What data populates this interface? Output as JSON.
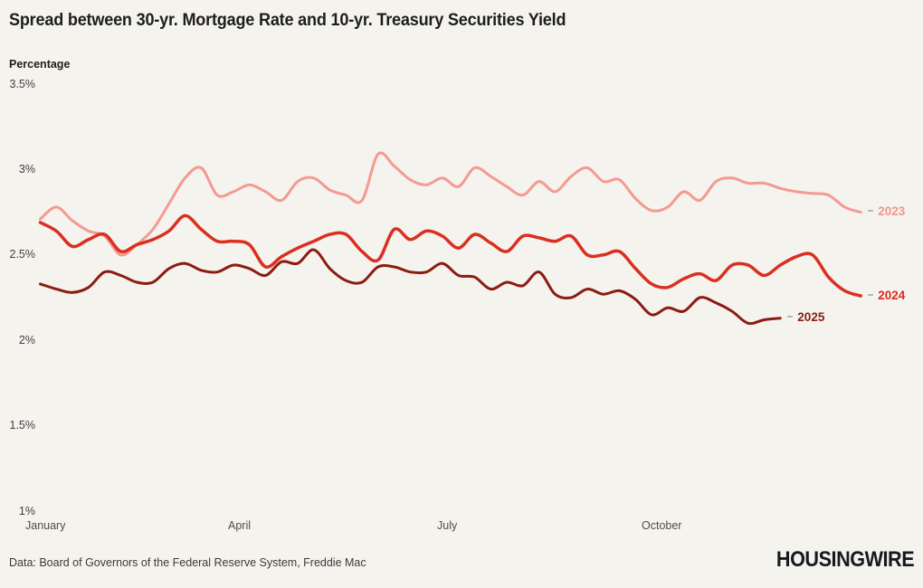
{
  "header": {
    "title": "Spread between 30-yr. Mortgage Rate and 10-yr. Treasury Securities Yield",
    "axis_title": "Percentage"
  },
  "footer": {
    "source": "Data: Board of Governors of the Federal Reserve System, Freddie Mac",
    "logo": "HOUSINGWIRE"
  },
  "chart_data": {
    "type": "line",
    "title": "Spread between 30-yr. Mortgage Rate and 10-yr. Treasury Securities Yield",
    "xlabel": "",
    "ylabel": "Percentage",
    "ylim": [
      1,
      3.5
    ],
    "grid": false,
    "legend_position": "line-end-labels",
    "x_unit": "weekly observations, January through December",
    "y_ticks": [
      {
        "label": "3.5%",
        "value": 3.5
      },
      {
        "label": "3%",
        "value": 3.0
      },
      {
        "label": "2.5%",
        "value": 2.5
      },
      {
        "label": "2%",
        "value": 2.0
      },
      {
        "label": "1.5%",
        "value": 1.5
      },
      {
        "label": "1%",
        "value": 1.0
      }
    ],
    "x_ticks": [
      "January",
      "April",
      "July",
      "October"
    ],
    "series": [
      {
        "name": "2023",
        "color": "#F49A92",
        "label_color": "#F4958C",
        "stroke_width": 3,
        "values": [
          2.71,
          2.78,
          2.7,
          2.64,
          2.61,
          2.5,
          2.56,
          2.65,
          2.8,
          2.95,
          3.01,
          2.85,
          2.87,
          2.91,
          2.87,
          2.82,
          2.93,
          2.95,
          2.88,
          2.85,
          2.82,
          3.09,
          3.02,
          2.94,
          2.91,
          2.95,
          2.9,
          3.01,
          2.96,
          2.9,
          2.85,
          2.93,
          2.87,
          2.96,
          3.01,
          2.93,
          2.94,
          2.83,
          2.76,
          2.78,
          2.87,
          2.82,
          2.93,
          2.95,
          2.92,
          2.92,
          2.89,
          2.87,
          2.86,
          2.85,
          2.78,
          2.75
        ]
      },
      {
        "name": "2024",
        "color": "#DA2F21",
        "label_color": "#E02A1D",
        "stroke_width": 3.5,
        "values": [
          2.69,
          2.64,
          2.55,
          2.59,
          2.62,
          2.52,
          2.56,
          2.59,
          2.64,
          2.73,
          2.65,
          2.58,
          2.58,
          2.56,
          2.43,
          2.49,
          2.54,
          2.58,
          2.62,
          2.62,
          2.52,
          2.47,
          2.65,
          2.59,
          2.64,
          2.61,
          2.54,
          2.62,
          2.57,
          2.52,
          2.61,
          2.6,
          2.58,
          2.61,
          2.5,
          2.5,
          2.52,
          2.42,
          2.33,
          2.31,
          2.36,
          2.39,
          2.35,
          2.44,
          2.44,
          2.38,
          2.44,
          2.49,
          2.5,
          2.37,
          2.29,
          2.26
        ]
      },
      {
        "name": "2025",
        "color": "#8C1C12",
        "label_color": "#8C1C12",
        "stroke_width": 3,
        "values": [
          2.33,
          2.3,
          2.28,
          2.31,
          2.4,
          2.38,
          2.34,
          2.34,
          2.42,
          2.45,
          2.41,
          2.4,
          2.44,
          2.42,
          2.38,
          2.46,
          2.45,
          2.53,
          2.42,
          2.35,
          2.34,
          2.43,
          2.43,
          2.4,
          2.4,
          2.45,
          2.38,
          2.37,
          2.3,
          2.34,
          2.32,
          2.4,
          2.27,
          2.25,
          2.3,
          2.27,
          2.29,
          2.24,
          2.15,
          2.19,
          2.17,
          2.25,
          2.22,
          2.17,
          2.1,
          2.12,
          2.13
        ]
      }
    ]
  }
}
